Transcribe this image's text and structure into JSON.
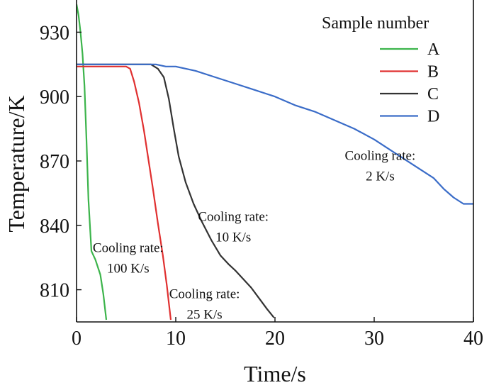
{
  "chart_data": {
    "type": "line",
    "xlabel": "Time/s",
    "ylabel": "Temperature/K",
    "xlim": [
      0,
      40
    ],
    "ylim": [
      795,
      945
    ],
    "xticks": [
      0,
      10,
      20,
      30,
      40
    ],
    "yticks": [
      810,
      840,
      870,
      900,
      930
    ],
    "grid": false,
    "legend_title": "Sample number",
    "legend_position": "top-right",
    "series": [
      {
        "name": "A",
        "color": "#3cb44b",
        "points": [
          [
            0,
            943
          ],
          [
            0.2,
            938
          ],
          [
            0.4,
            930
          ],
          [
            0.6,
            920
          ],
          [
            0.8,
            905
          ],
          [
            1.0,
            880
          ],
          [
            1.2,
            852
          ],
          [
            1.5,
            828
          ],
          [
            1.9,
            824
          ],
          [
            2.4,
            817
          ],
          [
            2.7,
            808
          ],
          [
            3.0,
            796
          ]
        ]
      },
      {
        "name": "B",
        "color": "#e03030",
        "points": [
          [
            0,
            914
          ],
          [
            5.0,
            914
          ],
          [
            5.4,
            913
          ],
          [
            5.8,
            907
          ],
          [
            6.3,
            897
          ],
          [
            6.8,
            884
          ],
          [
            7.2,
            872
          ],
          [
            7.7,
            857
          ],
          [
            8.2,
            841
          ],
          [
            8.7,
            826
          ],
          [
            9.1,
            812
          ],
          [
            9.5,
            796
          ]
        ]
      },
      {
        "name": "C",
        "color": "#333333",
        "points": [
          [
            0,
            915
          ],
          [
            7.5,
            915
          ],
          [
            8.2,
            913
          ],
          [
            8.8,
            909
          ],
          [
            9.3,
            899
          ],
          [
            9.8,
            885
          ],
          [
            10.3,
            872
          ],
          [
            11.0,
            860
          ],
          [
            11.8,
            850
          ],
          [
            12.6,
            842
          ],
          [
            13.6,
            833
          ],
          [
            14.5,
            826
          ],
          [
            15.3,
            822
          ],
          [
            16.0,
            819
          ],
          [
            16.8,
            815
          ],
          [
            17.6,
            811
          ],
          [
            18.4,
            806
          ],
          [
            19.2,
            801
          ],
          [
            19.9,
            797
          ]
        ]
      },
      {
        "name": "D",
        "color": "#3a6cc8",
        "points": [
          [
            0,
            915
          ],
          [
            8.0,
            915
          ],
          [
            9.0,
            914
          ],
          [
            10.0,
            914
          ],
          [
            12.0,
            912
          ],
          [
            14.0,
            909
          ],
          [
            16.0,
            906
          ],
          [
            18.0,
            903
          ],
          [
            20.0,
            900
          ],
          [
            22.0,
            896
          ],
          [
            24.0,
            893
          ],
          [
            26.0,
            889
          ],
          [
            28.0,
            885
          ],
          [
            30.0,
            880
          ],
          [
            32.0,
            874
          ],
          [
            34.0,
            868
          ],
          [
            36.0,
            862
          ],
          [
            37.0,
            857
          ],
          [
            38.0,
            853
          ],
          [
            39.0,
            850
          ],
          [
            40.0,
            850
          ]
        ]
      }
    ],
    "annotations": [
      {
        "lines": [
          "Cooling rate:",
          "100 K/s"
        ],
        "x": 5.2,
        "y": 827.5
      },
      {
        "lines": [
          "Cooling rate:",
          "25 K/s"
        ],
        "x": 12.9,
        "y": 806
      },
      {
        "lines": [
          "Cooling rate:",
          "10 K/s"
        ],
        "x": 15.8,
        "y": 842
      },
      {
        "lines": [
          "Cooling rate:",
          "2 K/s"
        ],
        "x": 30.6,
        "y": 870.5
      }
    ]
  }
}
